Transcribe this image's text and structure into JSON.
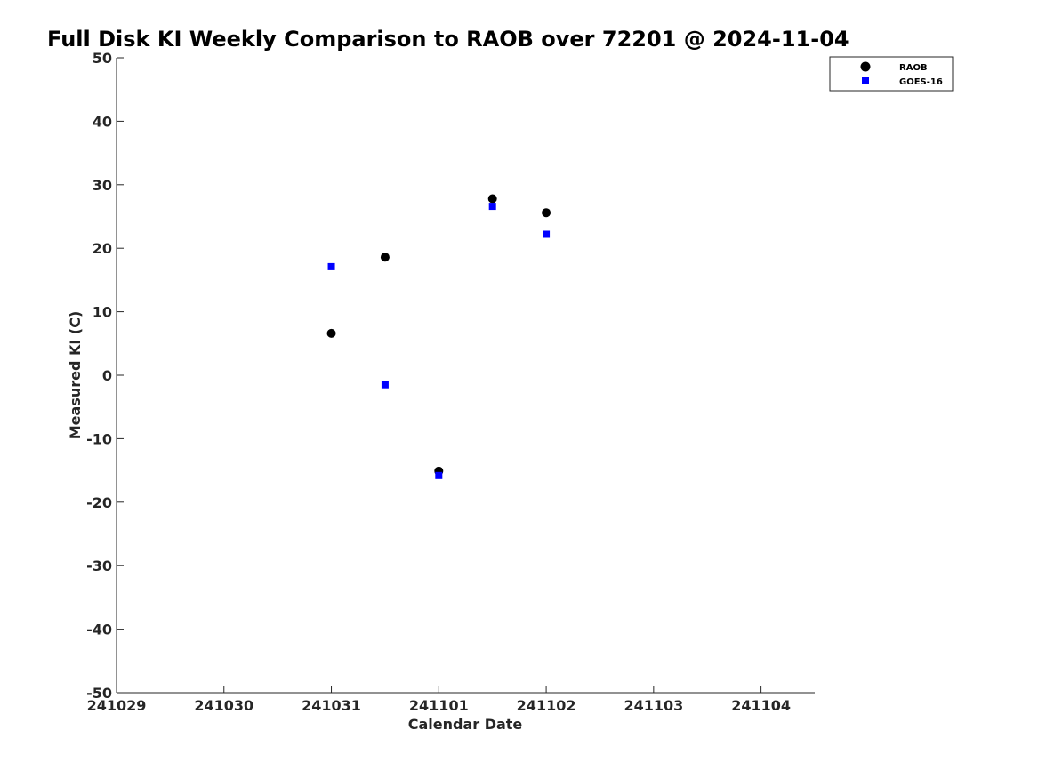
{
  "chart_data": {
    "type": "scatter",
    "title": "Full Disk KI Weekly Comparison to RAOB over 72201 @ 2024-11-04",
    "xlabel": "Calendar Date",
    "ylabel": "Measured KI (C)",
    "xlim": [
      "2024-10-29",
      "2024-11-04T12:00"
    ],
    "ylim": [
      -50,
      50
    ],
    "x_ticks": [
      {
        "x": "2024-10-29",
        "label": "241029"
      },
      {
        "x": "2024-10-30",
        "label": "241030"
      },
      {
        "x": "2024-10-31",
        "label": "241031"
      },
      {
        "x": "2024-11-01",
        "label": "241101"
      },
      {
        "x": "2024-11-02",
        "label": "241102"
      },
      {
        "x": "2024-11-03",
        "label": "241103"
      },
      {
        "x": "2024-11-04",
        "label": "241104"
      }
    ],
    "y_ticks": [
      {
        "y": 50,
        "label": "50"
      },
      {
        "y": 40,
        "label": "40"
      },
      {
        "y": 30,
        "label": "30"
      },
      {
        "y": 20,
        "label": "20"
      },
      {
        "y": 10,
        "label": "10"
      },
      {
        "y": 0,
        "label": "0"
      },
      {
        "y": -10,
        "label": "-10"
      },
      {
        "y": -20,
        "label": "-20"
      },
      {
        "y": -30,
        "label": "-30"
      },
      {
        "y": -40,
        "label": "-40"
      },
      {
        "y": -50,
        "label": "-50"
      }
    ],
    "grid": false,
    "legend": "top-right",
    "series": [
      {
        "name": "RAOB",
        "marker": "circle",
        "color": "#000000",
        "points": [
          {
            "x": "2024-10-31T00:00",
            "y": 6.6
          },
          {
            "x": "2024-10-31T12:00",
            "y": 18.6
          },
          {
            "x": "2024-11-01T00:00",
            "y": -15.1
          },
          {
            "x": "2024-11-01T12:00",
            "y": 27.8
          },
          {
            "x": "2024-11-02T00:00",
            "y": 25.6
          }
        ]
      },
      {
        "name": "GOES-16",
        "marker": "square",
        "color": "#0000ff",
        "points": [
          {
            "x": "2024-10-31T00:00",
            "y": 17.1
          },
          {
            "x": "2024-10-31T12:00",
            "y": -1.5
          },
          {
            "x": "2024-11-01T00:00",
            "y": -15.8
          },
          {
            "x": "2024-11-01T12:00",
            "y": 26.6
          },
          {
            "x": "2024-11-02T00:00",
            "y": 22.2
          }
        ]
      }
    ]
  }
}
